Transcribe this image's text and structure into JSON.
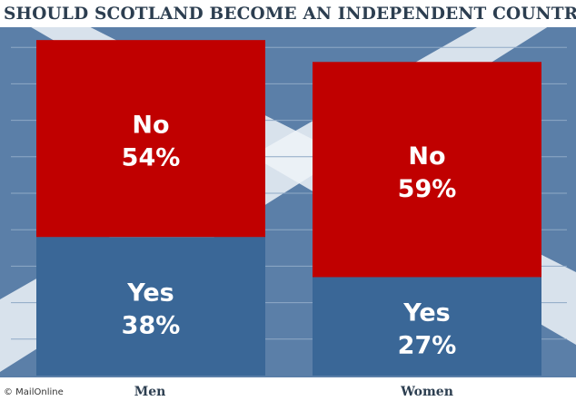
{
  "title": "SHOULD SCOTLAND BECOME AN INDEPENDENT COUNTRY?",
  "credit": "© MailOnline",
  "colors": {
    "no": "#c00000",
    "yes": "#3a6797",
    "background": "#5b7fa8",
    "flag_cross": "#eef3f8"
  },
  "chart_data": {
    "type": "bar",
    "stacked": true,
    "title": "SHOULD SCOTLAND BECOME AN INDEPENDENT COUNTRY?",
    "categories": [
      "Men",
      "Women"
    ],
    "series": [
      {
        "name": "Yes",
        "values": [
          38,
          27
        ],
        "labels": [
          "38%",
          "27%"
        ]
      },
      {
        "name": "No",
        "values": [
          54,
          59
        ],
        "labels": [
          "54%",
          "59%"
        ]
      }
    ],
    "ylim": [
      0,
      100
    ],
    "xlabel": "",
    "ylabel": "",
    "grid": true,
    "legend": "none"
  }
}
